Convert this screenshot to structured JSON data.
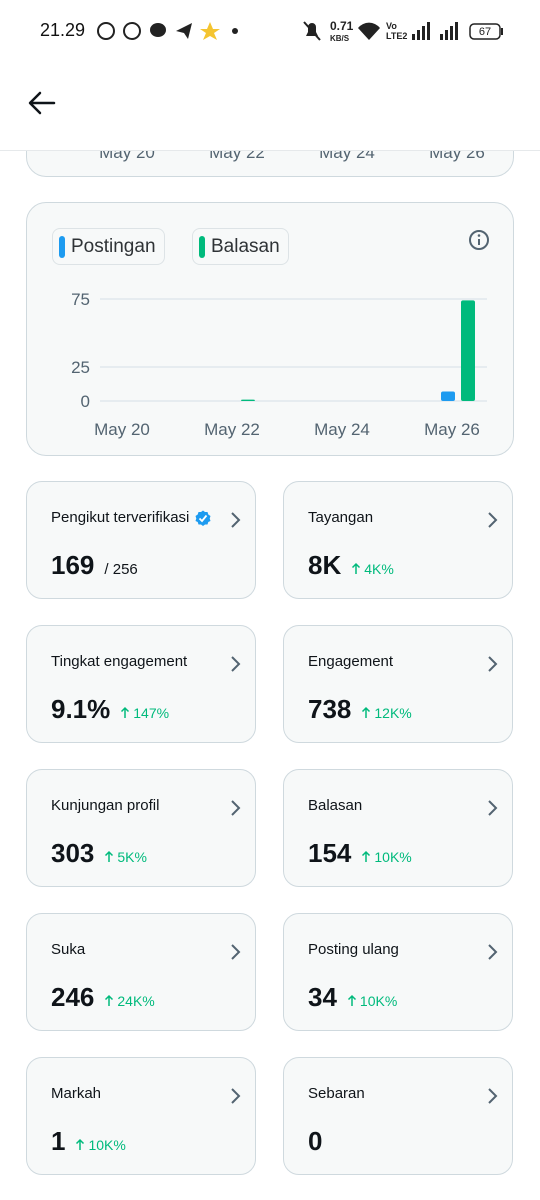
{
  "status_bar": {
    "time": "21.29",
    "net_speed": "0.71",
    "net_unit": "KB/S",
    "network_badge": [
      "Vo",
      "LTE2"
    ],
    "battery": "67"
  },
  "top_chart_x_labels": [
    "May 20",
    "May 22",
    "May 24",
    "May 26"
  ],
  "chart_data": {
    "type": "bar",
    "categories": [
      "May 20",
      null,
      "May 22",
      null,
      "May 24",
      null,
      "May 26"
    ],
    "series": [
      {
        "name": "Postingan",
        "color": "#1d9bf0",
        "values": [
          0,
          0,
          0,
          0,
          0,
          0,
          7
        ]
      },
      {
        "name": "Balasan",
        "color": "#00ba7c",
        "values": [
          0,
          0,
          1,
          0,
          0,
          0,
          74
        ]
      }
    ],
    "ylim": [
      0,
      75
    ],
    "yticks": [
      0,
      25,
      75
    ],
    "grid": true
  },
  "stats": [
    {
      "label": "Pengikut terverifikasi",
      "value": "169",
      "total": "/ 256",
      "verified": true
    },
    {
      "label": "Tayangan",
      "value": "8K",
      "change": "4K%"
    },
    {
      "label": "Tingkat engagement",
      "value": "9.1%",
      "change": "147%"
    },
    {
      "label": "Engagement",
      "value": "738",
      "change": "12K%"
    },
    {
      "label": "Kunjungan profil",
      "value": "303",
      "change": "5K%"
    },
    {
      "label": "Balasan",
      "value": "154",
      "change": "10K%"
    },
    {
      "label": "Suka",
      "value": "246",
      "change": "24K%"
    },
    {
      "label": "Posting ulang",
      "value": "34",
      "change": "10K%"
    },
    {
      "label": "Markah",
      "value": "1",
      "change": "10K%"
    },
    {
      "label": "Sebaran",
      "value": "0"
    }
  ]
}
